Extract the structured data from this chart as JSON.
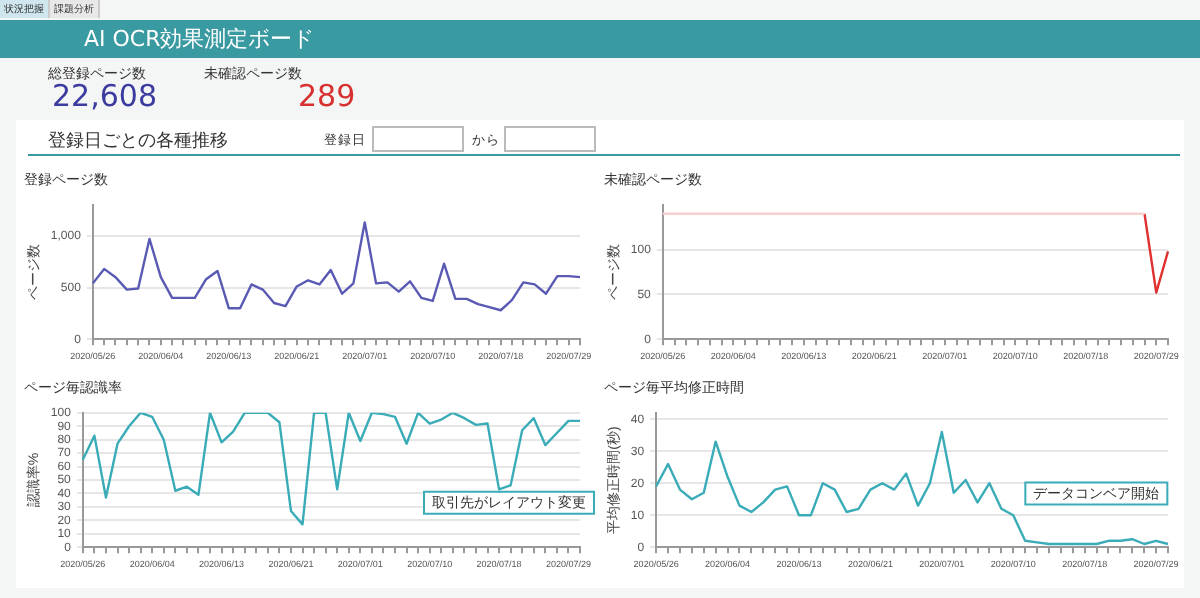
{
  "chart_data": [
    {
      "type": "other",
      "title": "AI OCR効果測定ボード",
      "annotations": [
        "状況把握",
        "課題分析",
        "総登録ページ数",
        "22,608",
        "未確認ページ数",
        "289",
        "登録日ごとの各種推移",
        "登録日",
        "から"
      ]
    },
    {
      "type": "line",
      "title": "登録ページ数",
      "ylabel": "ページ数",
      "categories": [
        "2020/05/26",
        null,
        null,
        null,
        null,
        null,
        "2020/06/04",
        null,
        null,
        null,
        null,
        null,
        "2020/06/13",
        null,
        null,
        null,
        null,
        null,
        "2020/06/21",
        null,
        null,
        null,
        null,
        null,
        "2020/07/01",
        null,
        null,
        null,
        null,
        null,
        "2020/07/10",
        null,
        null,
        null,
        null,
        null,
        "2020/07/18",
        null,
        null,
        null,
        null,
        null,
        "2020/07/29",
        null
      ],
      "series": [
        {
          "color": "#5a5ab4",
          "values": [
            540,
            680,
            600,
            480,
            490,
            970,
            600,
            400,
            400,
            400,
            580,
            660,
            300,
            300,
            530,
            480,
            350,
            320,
            510,
            570,
            530,
            670,
            440,
            540,
            1130,
            540,
            550,
            460,
            560,
            400,
            370,
            730,
            390,
            390,
            340,
            310,
            280,
            380,
            550,
            530,
            440,
            610,
            610,
            600
          ]
        }
      ],
      "ylim": [
        0,
        1300
      ],
      "yticks": [
        0,
        500,
        {
          "value": 1000,
          "label": "1,000"
        }
      ],
      "grid": "y",
      "marker": "none",
      "legend": false
    },
    {
      "type": "line",
      "title": "未確認ページ数",
      "ylabel": "ページ数",
      "categories": [
        "2020/05/26",
        null,
        null,
        null,
        null,
        null,
        "2020/06/04",
        null,
        null,
        null,
        null,
        null,
        "2020/06/13",
        null,
        null,
        null,
        null,
        null,
        "2020/06/21",
        null,
        null,
        null,
        null,
        null,
        "2020/07/01",
        null,
        null,
        null,
        null,
        null,
        "2020/07/10",
        null,
        null,
        null,
        null,
        null,
        "2020/07/18",
        null,
        null,
        null,
        null,
        null,
        "2020/07/29",
        null
      ],
      "series": [
        {
          "color": "#f8d0d0",
          "values": [
            140,
            140,
            140,
            140,
            140,
            140,
            140,
            140,
            140,
            140,
            140,
            140,
            140,
            140,
            140,
            140,
            140,
            140,
            140,
            140,
            140,
            140,
            140,
            140,
            140,
            140,
            140,
            140,
            140,
            140,
            140,
            140,
            140,
            140,
            140,
            140,
            140,
            140,
            140,
            140,
            140,
            140,
            null,
            null
          ]
        },
        {
          "color": "#e03030",
          "values": [
            null,
            null,
            null,
            null,
            null,
            null,
            null,
            null,
            null,
            null,
            null,
            null,
            null,
            null,
            null,
            null,
            null,
            null,
            null,
            null,
            null,
            null,
            null,
            null,
            null,
            null,
            null,
            null,
            null,
            null,
            null,
            null,
            null,
            null,
            null,
            null,
            null,
            null,
            null,
            null,
            null,
            140,
            52,
            98
          ]
        }
      ],
      "ylim": [
        0,
        150
      ],
      "yticks": [
        0,
        50,
        100
      ],
      "grid": "y",
      "marker": "none",
      "legend": false
    },
    {
      "type": "line",
      "title": "ページ毎認識率",
      "ylabel": "認識率%",
      "categories": [
        "2020/05/26",
        null,
        null,
        null,
        null,
        null,
        "2020/06/04",
        null,
        null,
        null,
        null,
        null,
        "2020/06/13",
        null,
        null,
        null,
        null,
        null,
        "2020/06/21",
        null,
        null,
        null,
        null,
        null,
        "2020/07/01",
        null,
        null,
        null,
        null,
        null,
        "2020/07/10",
        null,
        null,
        null,
        null,
        null,
        "2020/07/18",
        null,
        null,
        null,
        null,
        null,
        "2020/07/29",
        null
      ],
      "series": [
        {
          "color": "#3aacb8",
          "values": [
            65,
            83,
            37,
            77,
            90,
            100,
            97,
            80,
            42,
            45,
            39,
            100,
            78,
            86,
            100,
            100,
            100,
            93,
            27,
            17,
            100,
            100,
            43,
            100,
            79,
            100,
            99,
            97,
            77,
            100,
            92,
            95,
            100,
            96,
            91,
            92,
            43,
            46,
            87,
            96,
            76,
            85,
            94,
            94
          ]
        }
      ],
      "ylim": [
        0,
        100
      ],
      "yticks": [
        0,
        10,
        20,
        30,
        40,
        50,
        60,
        70,
        80,
        90,
        100
      ],
      "grid": "y",
      "marker": "none",
      "legend": false,
      "annotations": [
        "取引先がレイアウト変更"
      ]
    },
    {
      "type": "line",
      "title": "ページ毎平均修正時間",
      "ylabel": "平均修正時間(秒)",
      "categories": [
        "2020/05/26",
        null,
        null,
        null,
        null,
        null,
        "2020/06/04",
        null,
        null,
        null,
        null,
        null,
        "2020/06/13",
        null,
        null,
        null,
        null,
        null,
        "2020/06/21",
        null,
        null,
        null,
        null,
        null,
        "2020/07/01",
        null,
        null,
        null,
        null,
        null,
        "2020/07/10",
        null,
        null,
        null,
        null,
        null,
        "2020/07/18",
        null,
        null,
        null,
        null,
        null,
        "2020/07/29",
        null
      ],
      "series": [
        {
          "color": "#3aacb8",
          "values": [
            19,
            26,
            18,
            15,
            17,
            33,
            22,
            13,
            11,
            14,
            18,
            19,
            10,
            10,
            20,
            18,
            11,
            12,
            18,
            20,
            18,
            23,
            13,
            20,
            36,
            17,
            21,
            14,
            20,
            12,
            10,
            2,
            1.5,
            1,
            1,
            1,
            1,
            1,
            2,
            2,
            2.5,
            1,
            2,
            1
          ]
        }
      ],
      "ylim": [
        0,
        42
      ],
      "yticks": [
        0,
        10,
        20,
        30,
        40
      ],
      "grid": "y",
      "marker": "none",
      "legend": false,
      "annotations": [
        "データコンベア開始"
      ]
    }
  ]
}
